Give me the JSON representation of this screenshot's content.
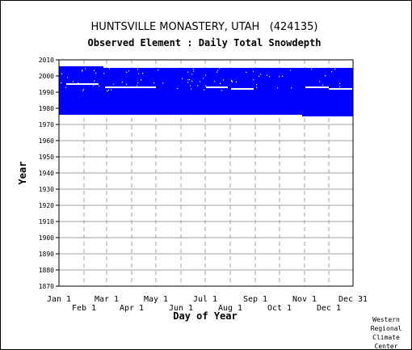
{
  "chart_data": {
    "type": "heatmap",
    "title": "HUNTSVILLE MONASTERY, UTAH   (424135)",
    "subtitle": "Observed Element : Daily Total Snowdepth",
    "xlabel": "Day of Year",
    "ylabel": "Year",
    "ylim": [
      1870,
      2010
    ],
    "yticks": [
      2010,
      2000,
      1990,
      1980,
      1970,
      1960,
      1950,
      1940,
      1930,
      1920,
      1910,
      1900,
      1890,
      1880,
      1870
    ],
    "xticks_upper": [
      {
        "label": "Jan 1",
        "day": 1
      },
      {
        "label": "Mar 1",
        "day": 60
      },
      {
        "label": "May 1",
        "day": 121
      },
      {
        "label": "Jul 1",
        "day": 182
      },
      {
        "label": "Sep 1",
        "day": 244
      },
      {
        "label": "Nov 1",
        "day": 305
      },
      {
        "label": "Dec 31",
        "day": 365
      }
    ],
    "xticks_lower": [
      {
        "label": "Feb 1",
        "day": 32
      },
      {
        "label": "Apr 1",
        "day": 91
      },
      {
        "label": "Jun 1",
        "day": 152
      },
      {
        "label": "Aug 1",
        "day": 213
      },
      {
        "label": "Oct 1",
        "day": 274
      },
      {
        "label": "Dec 1",
        "day": 335
      }
    ],
    "data_color": "#0000ff",
    "grid": true,
    "coverage": [
      {
        "day_start": 1,
        "day_end": 56,
        "year_start": 1976,
        "year_end": 2006
      },
      {
        "day_start": 56,
        "day_end": 302,
        "year_start": 1976,
        "year_end": 2005
      },
      {
        "day_start": 302,
        "day_end": 365,
        "year_start": 1975,
        "year_end": 2005
      }
    ],
    "missing_periods": [
      {
        "day_start": 10,
        "day_end": 50,
        "year": 1995
      },
      {
        "day_start": 58,
        "day_end": 121,
        "year": 1993
      },
      {
        "day_start": 183,
        "day_end": 210,
        "year": 1993
      },
      {
        "day_start": 214,
        "day_end": 242,
        "year": 1992
      },
      {
        "day_start": 306,
        "day_end": 335,
        "year": 1993
      },
      {
        "day_start": 335,
        "day_end": 364,
        "year": 1992
      }
    ]
  },
  "credit": [
    "Western",
    "Regional",
    "Climate",
    "Center"
  ]
}
